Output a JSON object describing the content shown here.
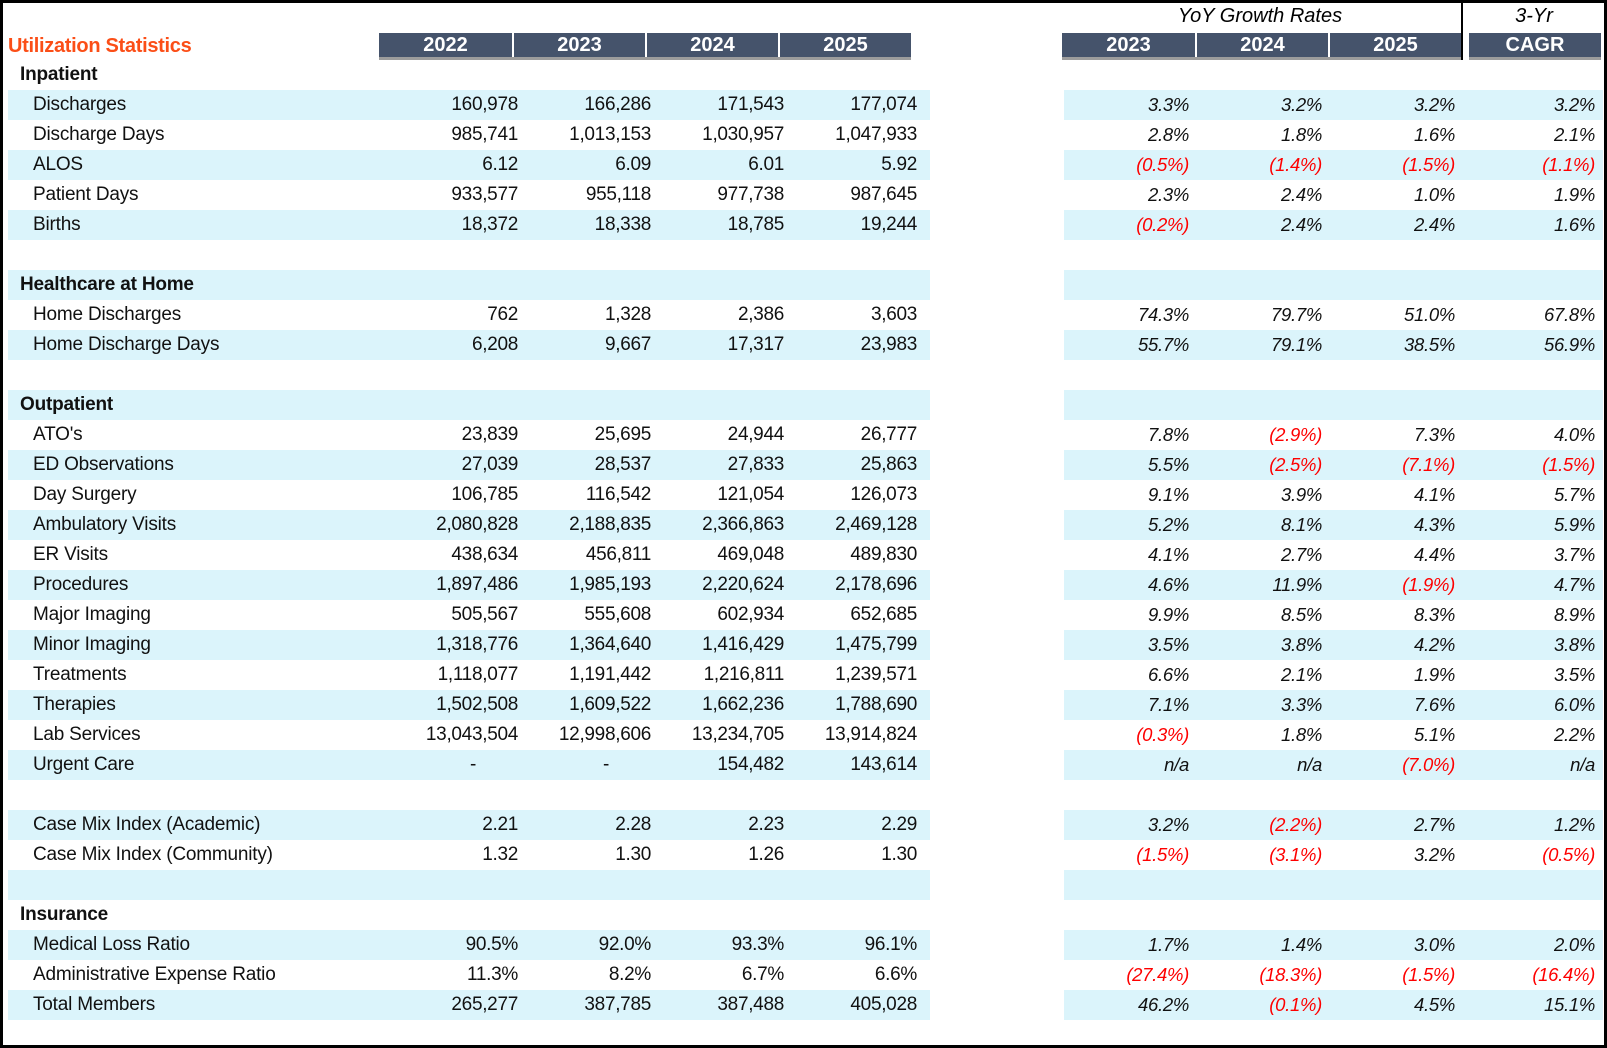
{
  "title": "Utilization Statistics",
  "header": {
    "yoy_title": "YoY Growth Rates",
    "three_yr_title": "3-Yr",
    "year_columns": [
      "2022",
      "2023",
      "2024",
      "2025"
    ],
    "growth_columns": [
      "2023",
      "2024",
      "2025"
    ],
    "cagr_column": "CAGR"
  },
  "colors": {
    "header_bg": "#45536B",
    "band_cyan": "#DBF4FB",
    "title_orange": "#FB4E17",
    "negative_red": "#FE0000",
    "border_black": "#000000"
  },
  "rows": [
    {
      "type": "section",
      "label": "Inpatient",
      "band": false
    },
    {
      "type": "item",
      "label": "Discharges",
      "band": true,
      "values": [
        "160,978",
        "166,286",
        "171,543",
        "177,074"
      ],
      "growth": [
        "3.3%",
        "3.2%",
        "3.2%",
        "3.2%"
      ]
    },
    {
      "type": "item",
      "label": "Discharge Days",
      "band": false,
      "values": [
        "985,741",
        "1,013,153",
        "1,030,957",
        "1,047,933"
      ],
      "growth": [
        "2.8%",
        "1.8%",
        "1.6%",
        "2.1%"
      ]
    },
    {
      "type": "item",
      "label": "ALOS",
      "band": true,
      "values": [
        "6.12",
        "6.09",
        "6.01",
        "5.92"
      ],
      "growth": [
        "(0.5%)",
        "(1.4%)",
        "(1.5%)",
        "(1.1%)"
      ]
    },
    {
      "type": "item",
      "label": "Patient Days",
      "band": false,
      "values": [
        "933,577",
        "955,118",
        "977,738",
        "987,645"
      ],
      "growth": [
        "2.3%",
        "2.4%",
        "1.0%",
        "1.9%"
      ]
    },
    {
      "type": "item",
      "label": "Births",
      "band": true,
      "values": [
        "18,372",
        "18,338",
        "18,785",
        "19,244"
      ],
      "growth": [
        "(0.2%)",
        "2.4%",
        "2.4%",
        "1.6%"
      ]
    },
    {
      "type": "blank",
      "band": false
    },
    {
      "type": "section",
      "label": "Healthcare at Home",
      "band": true
    },
    {
      "type": "item",
      "label": "Home Discharges",
      "band": false,
      "values": [
        "762",
        "1,328",
        "2,386",
        "3,603"
      ],
      "growth": [
        "74.3%",
        "79.7%",
        "51.0%",
        "67.8%"
      ]
    },
    {
      "type": "item",
      "label": "Home Discharge Days",
      "band": true,
      "values": [
        "6,208",
        "9,667",
        "17,317",
        "23,983"
      ],
      "growth": [
        "55.7%",
        "79.1%",
        "38.5%",
        "56.9%"
      ]
    },
    {
      "type": "blank",
      "band": false
    },
    {
      "type": "section",
      "label": "Outpatient",
      "band": true
    },
    {
      "type": "item",
      "label": "ATO's",
      "band": false,
      "values": [
        "23,839",
        "25,695",
        "24,944",
        "26,777"
      ],
      "growth": [
        "7.8%",
        "(2.9%)",
        "7.3%",
        "4.0%"
      ]
    },
    {
      "type": "item",
      "label": "ED Observations",
      "band": true,
      "values": [
        "27,039",
        "28,537",
        "27,833",
        "25,863"
      ],
      "growth": [
        "5.5%",
        "(2.5%)",
        "(7.1%)",
        "(1.5%)"
      ]
    },
    {
      "type": "item",
      "label": "Day Surgery",
      "band": false,
      "values": [
        "106,785",
        "116,542",
        "121,054",
        "126,073"
      ],
      "growth": [
        "9.1%",
        "3.9%",
        "4.1%",
        "5.7%"
      ]
    },
    {
      "type": "item",
      "label": "Ambulatory Visits",
      "band": true,
      "values": [
        "2,080,828",
        "2,188,835",
        "2,366,863",
        "2,469,128"
      ],
      "growth": [
        "5.2%",
        "8.1%",
        "4.3%",
        "5.9%"
      ]
    },
    {
      "type": "item",
      "label": "ER Visits",
      "band": false,
      "values": [
        "438,634",
        "456,811",
        "469,048",
        "489,830"
      ],
      "growth": [
        "4.1%",
        "2.7%",
        "4.4%",
        "3.7%"
      ]
    },
    {
      "type": "item",
      "label": "Procedures",
      "band": true,
      "values": [
        "1,897,486",
        "1,985,193",
        "2,220,624",
        "2,178,696"
      ],
      "growth": [
        "4.6%",
        "11.9%",
        "(1.9%)",
        "4.7%"
      ]
    },
    {
      "type": "item",
      "label": "Major Imaging",
      "band": false,
      "values": [
        "505,567",
        "555,608",
        "602,934",
        "652,685"
      ],
      "growth": [
        "9.9%",
        "8.5%",
        "8.3%",
        "8.9%"
      ]
    },
    {
      "type": "item",
      "label": "Minor Imaging",
      "band": true,
      "values": [
        "1,318,776",
        "1,364,640",
        "1,416,429",
        "1,475,799"
      ],
      "growth": [
        "3.5%",
        "3.8%",
        "4.2%",
        "3.8%"
      ]
    },
    {
      "type": "item",
      "label": "Treatments",
      "band": false,
      "values": [
        "1,118,077",
        "1,191,442",
        "1,216,811",
        "1,239,571"
      ],
      "growth": [
        "6.6%",
        "2.1%",
        "1.9%",
        "3.5%"
      ]
    },
    {
      "type": "item",
      "label": "Therapies",
      "band": true,
      "values": [
        "1,502,508",
        "1,609,522",
        "1,662,236",
        "1,788,690"
      ],
      "growth": [
        "7.1%",
        "3.3%",
        "7.6%",
        "6.0%"
      ]
    },
    {
      "type": "item",
      "label": "Lab Services",
      "band": false,
      "values": [
        "13,043,504",
        "12,998,606",
        "13,234,705",
        "13,914,824"
      ],
      "growth": [
        "(0.3%)",
        "1.8%",
        "5.1%",
        "2.2%"
      ]
    },
    {
      "type": "item",
      "label": "Urgent Care",
      "band": true,
      "values": [
        "-",
        "-",
        "154,482",
        "143,614"
      ],
      "growth": [
        "n/a",
        "n/a",
        "(7.0%)",
        "n/a"
      ]
    },
    {
      "type": "blank",
      "band": false
    },
    {
      "type": "item",
      "label": "Case Mix Index (Academic)",
      "band": true,
      "values": [
        "2.21",
        "2.28",
        "2.23",
        "2.29"
      ],
      "growth": [
        "3.2%",
        "(2.2%)",
        "2.7%",
        "1.2%"
      ]
    },
    {
      "type": "item",
      "label": "Case Mix Index (Community)",
      "band": false,
      "values": [
        "1.32",
        "1.30",
        "1.26",
        "1.30"
      ],
      "growth": [
        "(1.5%)",
        "(3.1%)",
        "3.2%",
        "(0.5%)"
      ]
    },
    {
      "type": "blank",
      "band": true
    },
    {
      "type": "section",
      "label": "Insurance",
      "band": false
    },
    {
      "type": "item",
      "label": "Medical Loss Ratio",
      "band": true,
      "values": [
        "90.5%",
        "92.0%",
        "93.3%",
        "96.1%"
      ],
      "growth": [
        "1.7%",
        "1.4%",
        "3.0%",
        "2.0%"
      ]
    },
    {
      "type": "item",
      "label": "Administrative Expense Ratio",
      "band": false,
      "values": [
        "11.3%",
        "8.2%",
        "6.7%",
        "6.6%"
      ],
      "growth": [
        "(27.4%)",
        "(18.3%)",
        "(1.5%)",
        "(16.4%)"
      ]
    },
    {
      "type": "item",
      "label": "Total Members",
      "band": true,
      "values": [
        "265,277",
        "387,785",
        "387,488",
        "405,028"
      ],
      "growth": [
        "46.2%",
        "(0.1%)",
        "4.5%",
        "15.1%"
      ]
    }
  ]
}
